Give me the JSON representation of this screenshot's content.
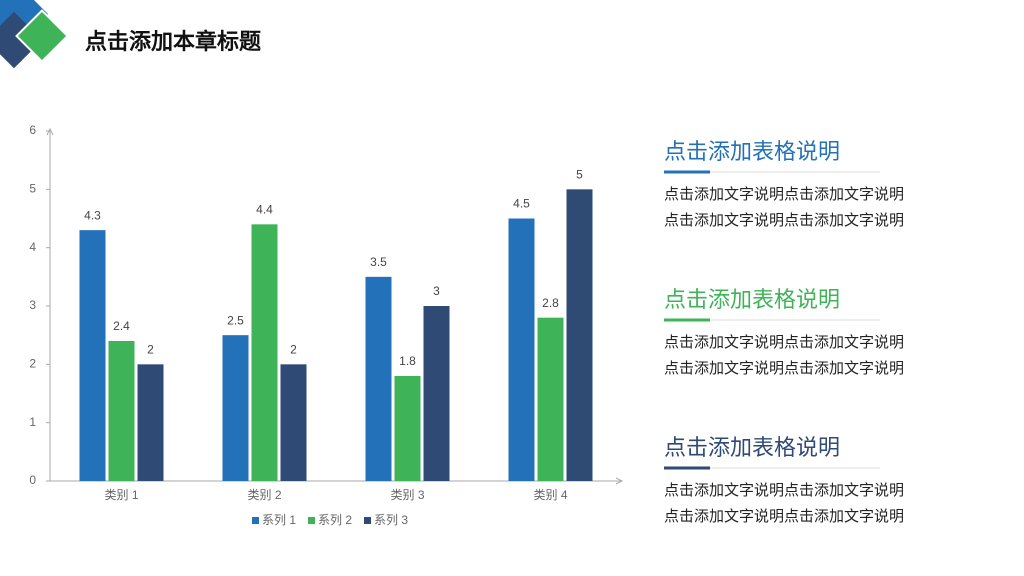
{
  "header": {
    "title": "点击添加本章标题"
  },
  "chart_data": {
    "type": "bar",
    "categories": [
      "类别 1",
      "类别 2",
      "类别 3",
      "类别 4"
    ],
    "series": [
      {
        "name": "系列 1",
        "color": "#2371b8",
        "values": [
          4.3,
          2.5,
          3.5,
          4.5
        ]
      },
      {
        "name": "系列 2",
        "color": "#3fb357",
        "values": [
          2.4,
          4.4,
          1.8,
          2.8
        ]
      },
      {
        "name": "系列 3",
        "color": "#2e4a75",
        "values": [
          2,
          2,
          3,
          5
        ]
      }
    ],
    "ylim": [
      0,
      6
    ],
    "yticks": [
      0,
      1,
      2,
      3,
      4,
      5,
      6
    ],
    "grid": false,
    "legend": "bottom"
  },
  "notes": [
    {
      "title": "点击添加表格说明",
      "lines": [
        "点击添加文字说明点击添加文字说明",
        "点击添加文字说明点击添加文字说明"
      ]
    },
    {
      "title": "点击添加表格说明",
      "lines": [
        "点击添加文字说明点击添加文字说明",
        "点击添加文字说明点击添加文字说明"
      ]
    },
    {
      "title": "点击添加表格说明",
      "lines": [
        "点击添加文字说明点击添加文字说明",
        "点击添加文字说明点击添加文字说明"
      ]
    }
  ]
}
